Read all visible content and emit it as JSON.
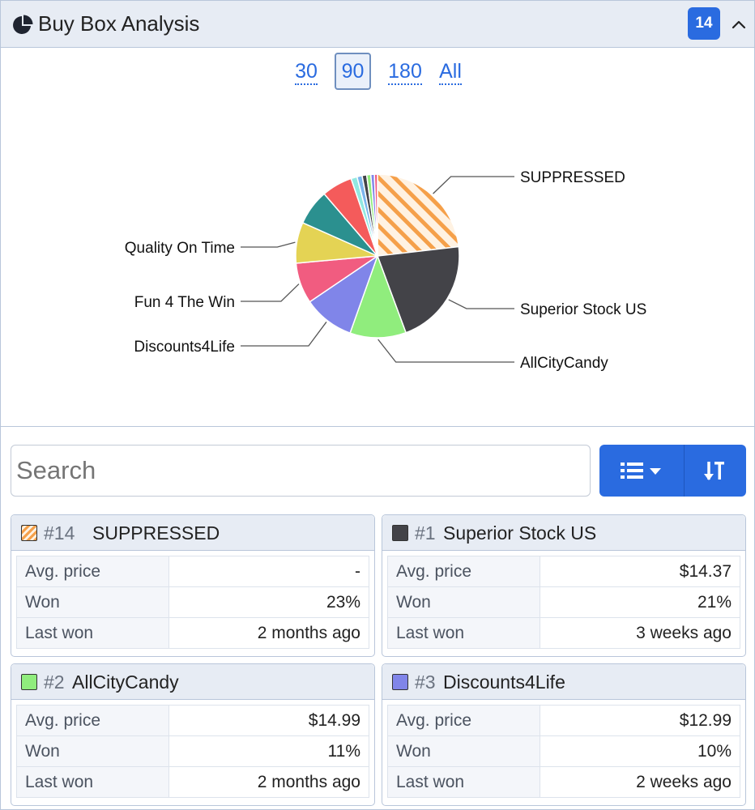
{
  "header": {
    "title": "Buy Box Analysis",
    "badge": "14",
    "pie_icon": "pie-chart-icon",
    "collapse_icon": "chevron-up-icon"
  },
  "ranges": [
    {
      "label": "30",
      "active": false
    },
    {
      "label": "90",
      "active": true
    },
    {
      "label": "180",
      "active": false
    },
    {
      "label": "All",
      "active": false
    }
  ],
  "chart_data": {
    "type": "pie",
    "labels": [
      "SUPPRESSED",
      "Superior Stock US",
      "AllCityCandy",
      "Discounts4Life",
      "Fun 4 The Win",
      "Quality On Time"
    ],
    "slices": [
      {
        "name": "SUPPRESSED",
        "value": 23,
        "color": "#f5a04a",
        "pattern": "hatched"
      },
      {
        "name": "Superior Stock US",
        "value": 21,
        "color": "#434348"
      },
      {
        "name": "AllCityCandy",
        "value": 11,
        "color": "#90ed7d"
      },
      {
        "name": "Discounts4Life",
        "value": 10,
        "color": "#8085e9"
      },
      {
        "name": "Fun 4 The Win",
        "value": 8,
        "color": "#f15c80"
      },
      {
        "name": "Quality On Time",
        "value": 8,
        "color": "#e4d354"
      },
      {
        "name": "",
        "value": 7,
        "color": "#2b908f"
      },
      {
        "name": "",
        "value": 6,
        "color": "#f45b5b"
      },
      {
        "name": "",
        "value": 1.2,
        "color": "#91e8e1"
      },
      {
        "name": "",
        "value": 1.0,
        "color": "#7cb5ec"
      },
      {
        "name": "",
        "value": 0.9,
        "color": "#434348"
      },
      {
        "name": "",
        "value": 0.8,
        "color": "#90ed7d"
      },
      {
        "name": "",
        "value": 0.7,
        "color": "#8085e9"
      },
      {
        "name": "",
        "value": 0.6,
        "color": "#f15c80"
      }
    ]
  },
  "search": {
    "placeholder": "Search"
  },
  "toolbar": {
    "view_icon": "list-icon",
    "dropdown_icon": "caret-down-icon",
    "sort_icon": "sort-icon"
  },
  "sellers": [
    {
      "rank": "#14",
      "name": "SUPPRESSED",
      "color": "#f5a04a",
      "hatched": true,
      "rows": [
        {
          "label": "Avg. price",
          "value": "-"
        },
        {
          "label": "Won",
          "value": "23%"
        },
        {
          "label": "Last won",
          "value": "2 months ago"
        }
      ]
    },
    {
      "rank": "#1",
      "name": "Superior Stock US",
      "color": "#434348",
      "hatched": false,
      "rows": [
        {
          "label": "Avg. price",
          "value": "$14.37"
        },
        {
          "label": "Won",
          "value": "21%"
        },
        {
          "label": "Last won",
          "value": "3 weeks ago"
        }
      ]
    },
    {
      "rank": "#2",
      "name": "AllCityCandy",
      "color": "#90ed7d",
      "hatched": false,
      "rows": [
        {
          "label": "Avg. price",
          "value": "$14.99"
        },
        {
          "label": "Won",
          "value": "11%"
        },
        {
          "label": "Last won",
          "value": "2 months ago"
        }
      ]
    },
    {
      "rank": "#3",
      "name": "Discounts4Life",
      "color": "#8085e9",
      "hatched": false,
      "rows": [
        {
          "label": "Avg. price",
          "value": "$12.99"
        },
        {
          "label": "Won",
          "value": "10%"
        },
        {
          "label": "Last won",
          "value": "2 weeks ago"
        }
      ]
    }
  ]
}
